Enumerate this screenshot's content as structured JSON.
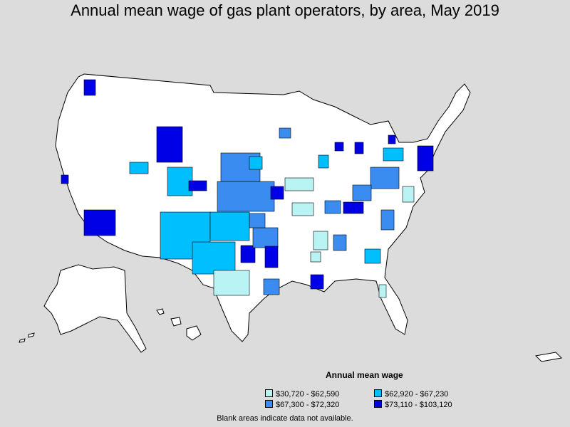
{
  "title": "Annual mean wage of gas plant operators, by area, May 2019",
  "legend": {
    "title": "Annual mean wage",
    "items": [
      {
        "label": "$30,720 - $62,590",
        "color": "#b9f3f3"
      },
      {
        "label": "$62,920 - $67,230",
        "color": "#00bfff"
      },
      {
        "label": "$67,300 - $72,320",
        "color": "#3a8cf0"
      },
      {
        "label": "$73,110 - $103,120",
        "color": "#0000e6"
      }
    ]
  },
  "footnote": "Blank areas indicate data not available.",
  "colors": {
    "background": "#dcdcdc",
    "land": "#ffffff",
    "border": "#000000"
  }
}
